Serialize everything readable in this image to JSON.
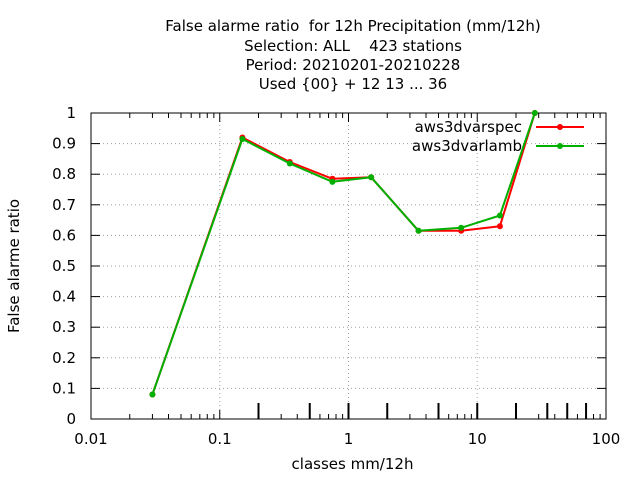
{
  "title": {
    "line1": "False alarme ratio  for 12h Precipitation (mm/12h)",
    "line2": "Selection: ALL    423 stations",
    "line3": "Period: 20210201-20210228",
    "line4": "Used {00} + 12 13 ... 36"
  },
  "chart_data": {
    "type": "line",
    "title": "False alarme ratio  for 12h Precipitation (mm/12h)",
    "xlabel": "classes mm/12h",
    "ylabel": "False alarme ratio",
    "xscale": "log",
    "xlim": [
      0.01,
      100
    ],
    "ylim": [
      0,
      1
    ],
    "x_tick_labels": [
      "0.01",
      "0.1",
      "1",
      "10",
      "100"
    ],
    "y_tick_labels": [
      "0",
      "0.1",
      "0.2",
      "0.3",
      "0.4",
      "0.5",
      "0.6",
      "0.7",
      "0.8",
      "0.9",
      "1"
    ],
    "grid": true,
    "legend_position": "top-right",
    "class_marks": [
      0.2,
      0.5,
      1,
      2,
      5,
      10,
      20,
      35,
      50,
      70
    ],
    "series": [
      {
        "name": "aws3dvarspec",
        "color": "#ff0000",
        "x": [
          0.03,
          0.15,
          0.35,
          0.75,
          1.5,
          3.5,
          7.5,
          15,
          28
        ],
        "y": [
          0.08,
          0.92,
          0.84,
          0.785,
          0.79,
          0.615,
          0.615,
          0.63,
          1.0
        ]
      },
      {
        "name": "aws3dvarlamb",
        "color": "#00b000",
        "x": [
          0.03,
          0.15,
          0.35,
          0.75,
          1.5,
          3.5,
          7.5,
          15,
          28
        ],
        "y": [
          0.08,
          0.915,
          0.835,
          0.775,
          0.79,
          0.615,
          0.625,
          0.665,
          1.0
        ]
      }
    ]
  }
}
